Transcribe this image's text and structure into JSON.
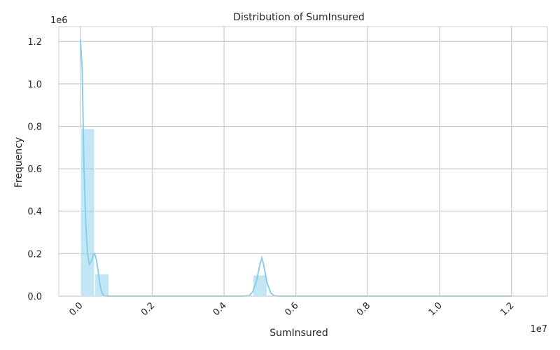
{
  "chart_data": {
    "type": "histogram",
    "title": "Distribution of SumInsured",
    "xlabel": "SumInsured",
    "ylabel": "Frequency",
    "x_offset_label": "1e7",
    "y_offset_label": "1e6",
    "xlim": [
      -0.06,
      1.3
    ],
    "ylim": [
      0,
      1.27
    ],
    "x_ticks": [
      0.0,
      0.2,
      0.4,
      0.6,
      0.8,
      1.0,
      1.2
    ],
    "x_tick_labels": [
      "0.0",
      "0.2",
      "0.4",
      "0.6",
      "0.8",
      "1.0",
      "1.2"
    ],
    "y_ticks": [
      0.0,
      0.2,
      0.4,
      0.6,
      0.8,
      1.0,
      1.2
    ],
    "y_tick_labels": [
      "0.0",
      "0.2",
      "0.4",
      "0.6",
      "0.8",
      "1.0",
      "1.2"
    ],
    "grid": true,
    "bar_color": "#87CEEB",
    "kde_color": "#87CEEB",
    "bins": [
      {
        "x0": 0.0,
        "x1": 0.04,
        "count": 0.79
      },
      {
        "x0": 0.04,
        "x1": 0.08,
        "count": 0.105
      },
      {
        "x0": 0.48,
        "x1": 0.52,
        "count": 0.1
      }
    ],
    "kde": {
      "x": [
        0.0,
        0.005,
        0.01,
        0.015,
        0.02,
        0.025,
        0.03,
        0.035,
        0.04,
        0.045,
        0.05,
        0.055,
        0.06,
        0.065,
        0.07,
        0.075,
        0.08,
        0.085,
        0.09,
        0.1,
        0.15,
        0.2,
        0.3,
        0.4,
        0.45,
        0.47,
        0.48,
        0.49,
        0.5,
        0.505,
        0.51,
        0.52,
        0.53,
        0.54,
        0.55,
        0.6,
        0.8,
        1.0,
        1.2
      ],
      "y": [
        1.21,
        1.07,
        0.62,
        0.34,
        0.2,
        0.15,
        0.16,
        0.19,
        0.2,
        0.17,
        0.11,
        0.05,
        0.015,
        0.003,
        0.0,
        0.0,
        0.0,
        0.0,
        0.0,
        0.0,
        0.0,
        0.0,
        0.0,
        0.0,
        0.0,
        0.002,
        0.02,
        0.07,
        0.15,
        0.18,
        0.15,
        0.06,
        0.015,
        0.002,
        0.0,
        0.0,
        0.0,
        0.0,
        0.0
      ]
    }
  }
}
